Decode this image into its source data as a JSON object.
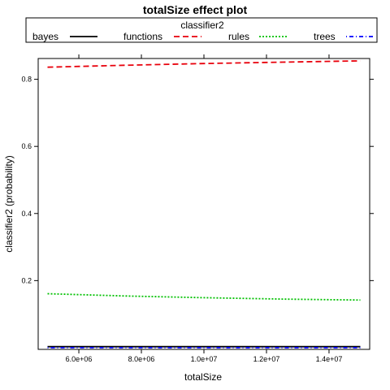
{
  "chart_data": {
    "type": "line",
    "title": "totalSize effect plot",
    "xlabel": "totalSize",
    "ylabel": "classifier2 (probability)",
    "legend": {
      "title": "classifier2",
      "position": "top",
      "entries": [
        "bayes",
        "functions",
        "rules",
        "trees"
      ]
    },
    "x_ticks": [
      6000000,
      8000000,
      10000000,
      12000000,
      14000000
    ],
    "x_tick_labels": [
      "6.0e+06",
      "8.0e+06",
      "1.0e+07",
      "1.2e+07",
      "1.4e+07"
    ],
    "y_ticks": [
      0.2,
      0.4,
      0.6,
      0.8
    ],
    "y_tick_labels": [
      "0.2",
      "0.4",
      "0.6",
      "0.8"
    ],
    "xlim": [
      4700000,
      15300000
    ],
    "ylim": [
      -0.005,
      0.862
    ],
    "x": [
      5000000,
      7500000,
      10000000,
      12500000,
      15000000
    ],
    "series": [
      {
        "name": "bayes",
        "color": "#000000",
        "dash": "solid",
        "values": [
          0.003,
          0.003,
          0.003,
          0.003,
          0.003
        ]
      },
      {
        "name": "functions",
        "color": "#e8000b",
        "dash": "dashed",
        "values": [
          0.836,
          0.842,
          0.847,
          0.851,
          0.855
        ]
      },
      {
        "name": "rules",
        "color": "#00c000",
        "dash": "dotted",
        "values": [
          0.161,
          0.154,
          0.149,
          0.145,
          0.142
        ]
      },
      {
        "name": "trees",
        "color": "#0000ff",
        "dash": "dotdash",
        "values": [
          0.0002,
          0.0002,
          0.0002,
          0.0002,
          0.0002
        ]
      }
    ],
    "grid": false
  }
}
